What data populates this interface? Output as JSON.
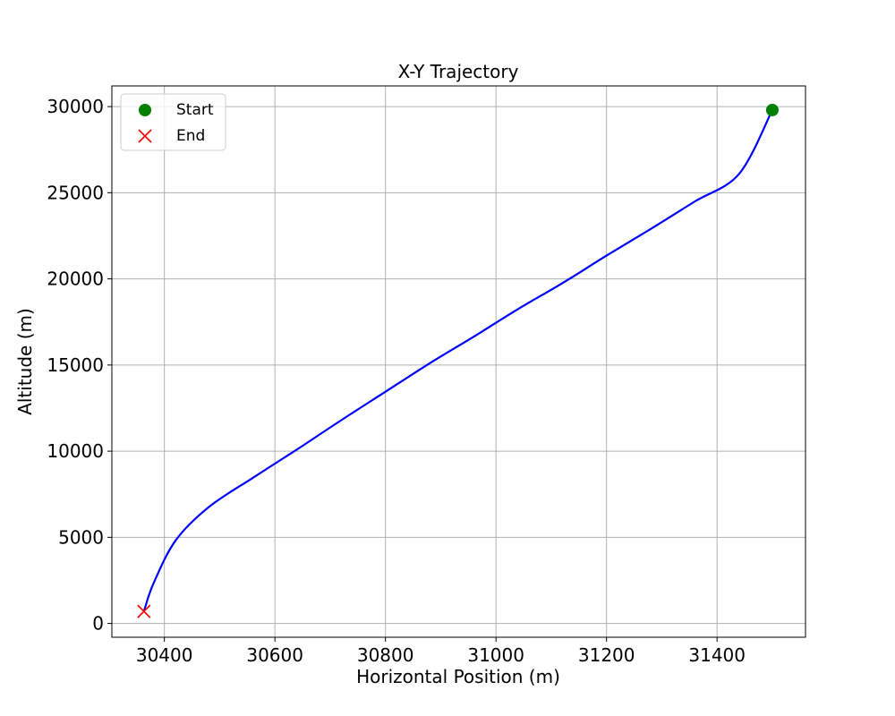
{
  "chart_data": {
    "type": "line",
    "title": "X-Y Trajectory",
    "xlabel": "Horizontal Position (m)",
    "ylabel": "Altitude (m)",
    "xlim": [
      30305,
      31560
    ],
    "ylim": [
      -800,
      31200
    ],
    "xticks": [
      30400,
      30600,
      30800,
      31000,
      31200,
      31400
    ],
    "yticks": [
      0,
      5000,
      10000,
      15000,
      20000,
      25000,
      30000
    ],
    "xtick_labels": [
      "30400",
      "30600",
      "30800",
      "31000",
      "31200",
      "31400"
    ],
    "ytick_labels": [
      "0",
      "5000",
      "10000",
      "15000",
      "20000",
      "25000",
      "30000"
    ],
    "grid": true,
    "legend_position": "top-left",
    "series": [
      {
        "type": "line",
        "color": "#0000ff",
        "x": [
          30363,
          30380,
          30420,
          30480,
          30560,
          30640,
          30720,
          30800,
          30880,
          30960,
          31040,
          31120,
          31200,
          31280,
          31360,
          31440,
          31500
        ],
        "y": [
          700,
          2300,
          4800,
          6750,
          8450,
          10100,
          11800,
          13450,
          15100,
          16650,
          18250,
          19750,
          21350,
          22900,
          24500,
          26100,
          29800
        ]
      },
      {
        "type": "scatter",
        "name": "Start",
        "marker": "circle",
        "color": "#008000",
        "x": [
          31500
        ],
        "y": [
          29800
        ]
      },
      {
        "type": "scatter",
        "name": "End",
        "marker": "x",
        "color": "#ff0000",
        "x": [
          30363
        ],
        "y": [
          700
        ]
      }
    ]
  }
}
